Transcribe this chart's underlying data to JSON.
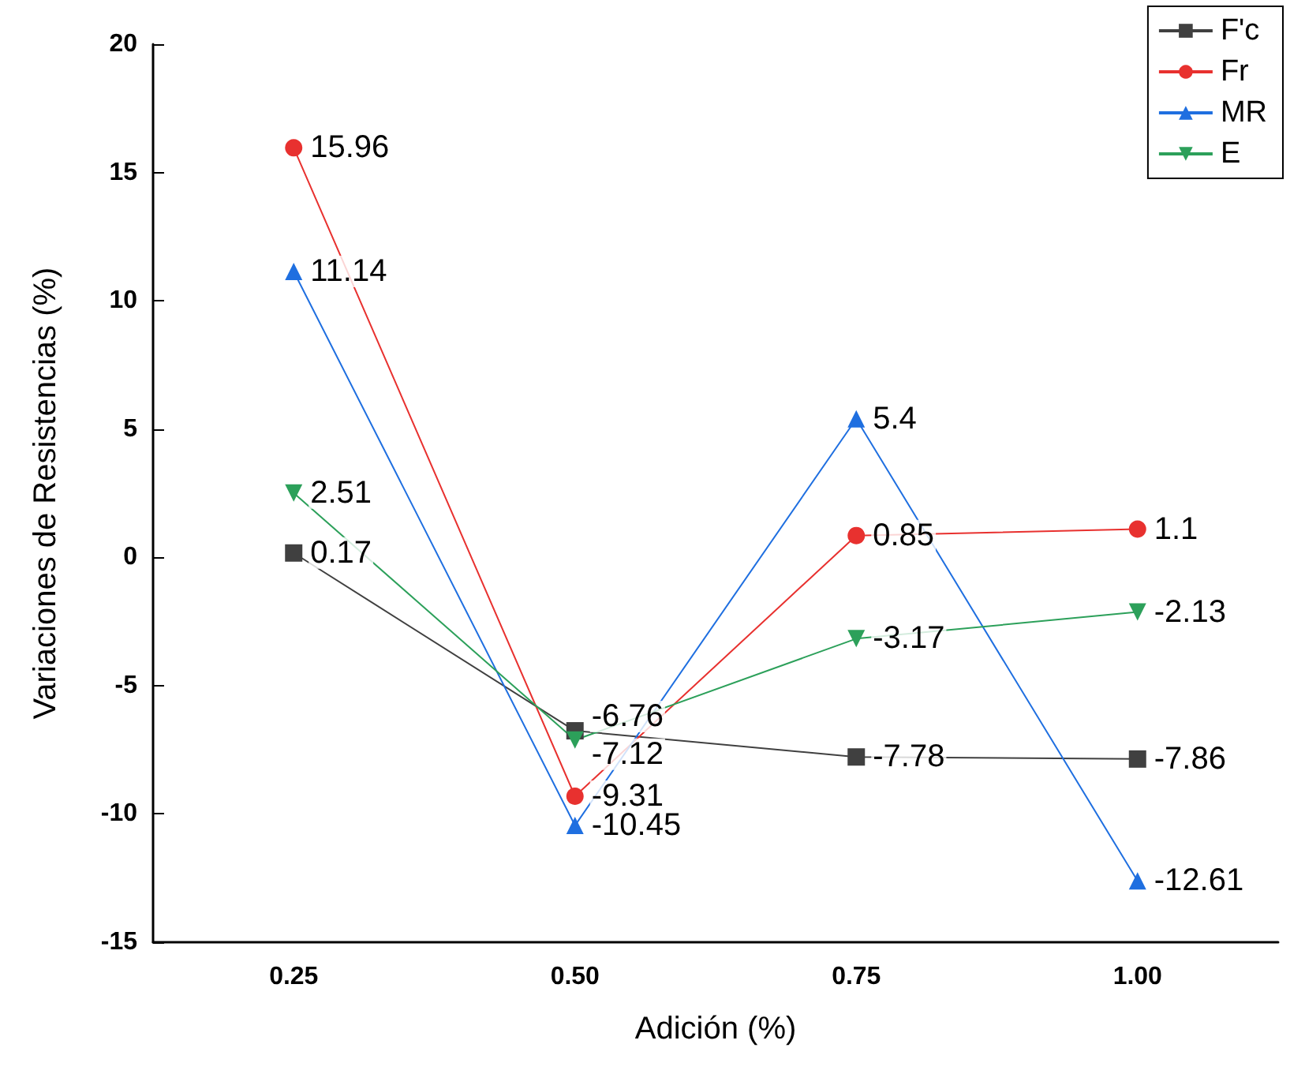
{
  "chart_data": {
    "type": "line",
    "xlabel": "Adición (%)",
    "ylabel": "Variaciones de Resistencias (%)",
    "categories": [
      "0.25",
      "0.50",
      "0.75",
      "1.00"
    ],
    "series": [
      {
        "name": "F'c",
        "color": "#404040",
        "marker": "square",
        "values": [
          0.17,
          -6.76,
          -7.78,
          -7.86
        ]
      },
      {
        "name": "Fr",
        "color": "#e8312f",
        "marker": "circle",
        "values": [
          15.96,
          -9.31,
          0.85,
          1.1
        ]
      },
      {
        "name": "MR",
        "color": "#1f6fe0",
        "marker": "triangle",
        "values": [
          11.14,
          -10.45,
          5.4,
          -12.61
        ]
      },
      {
        "name": "E",
        "color": "#2ca05a",
        "marker": "triangle-down",
        "values": [
          2.51,
          -7.12,
          -3.17,
          -2.13
        ]
      }
    ],
    "ylim": [
      -15,
      20
    ],
    "yticks": [
      -15,
      -10,
      -5,
      0,
      5,
      10,
      15,
      20
    ],
    "data_labels": true,
    "legend": "top right",
    "grid": false,
    "line_style": "solid"
  }
}
